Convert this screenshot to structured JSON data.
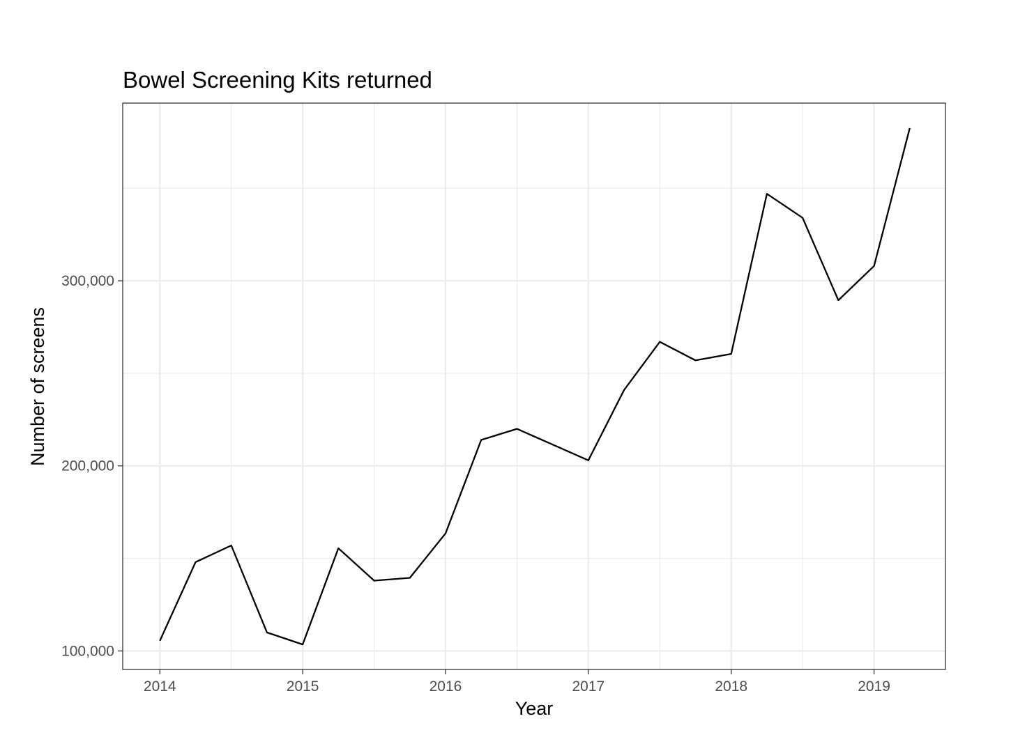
{
  "chart_data": {
    "type": "line",
    "title": "Bowel Screening Kits returned",
    "xlabel": "Year",
    "ylabel": "Number of screens",
    "xlim": [
      2013.74,
      2019.5
    ],
    "ylim": [
      90000,
      396000
    ],
    "x_ticks": [
      2014,
      2015,
      2016,
      2017,
      2018,
      2019
    ],
    "x_tick_labels": [
      "2014",
      "2015",
      "2016",
      "2017",
      "2018",
      "2019"
    ],
    "y_ticks": [
      100000,
      200000,
      300000
    ],
    "y_tick_labels": [
      "100,000",
      "200,000",
      "300,000"
    ],
    "y_minor_ticks": [
      150000,
      250000,
      350000
    ],
    "x_minor_ticks": [
      2014.5,
      2015.5,
      2016.5,
      2017.5,
      2018.5
    ],
    "grid": true,
    "line_color": "#000000",
    "grid_color": "#ebebeb",
    "series": [
      {
        "x": [
          2014.0,
          2014.25,
          2014.5,
          2014.75,
          2015.0,
          2015.25,
          2015.5,
          2015.75,
          2016.0,
          2016.25,
          2016.5,
          2016.75,
          2017.0,
          2017.25,
          2017.5,
          2017.75,
          2018.0,
          2018.25,
          2018.5,
          2018.75,
          2019.0,
          2019.25
        ],
        "values": [
          105500,
          148000,
          157000,
          110000,
          103500,
          155500,
          138000,
          139500,
          163500,
          214000,
          220000,
          211500,
          203000,
          241000,
          267000,
          257000,
          260500,
          347000,
          334000,
          289500,
          308000,
          382500
        ]
      }
    ]
  }
}
